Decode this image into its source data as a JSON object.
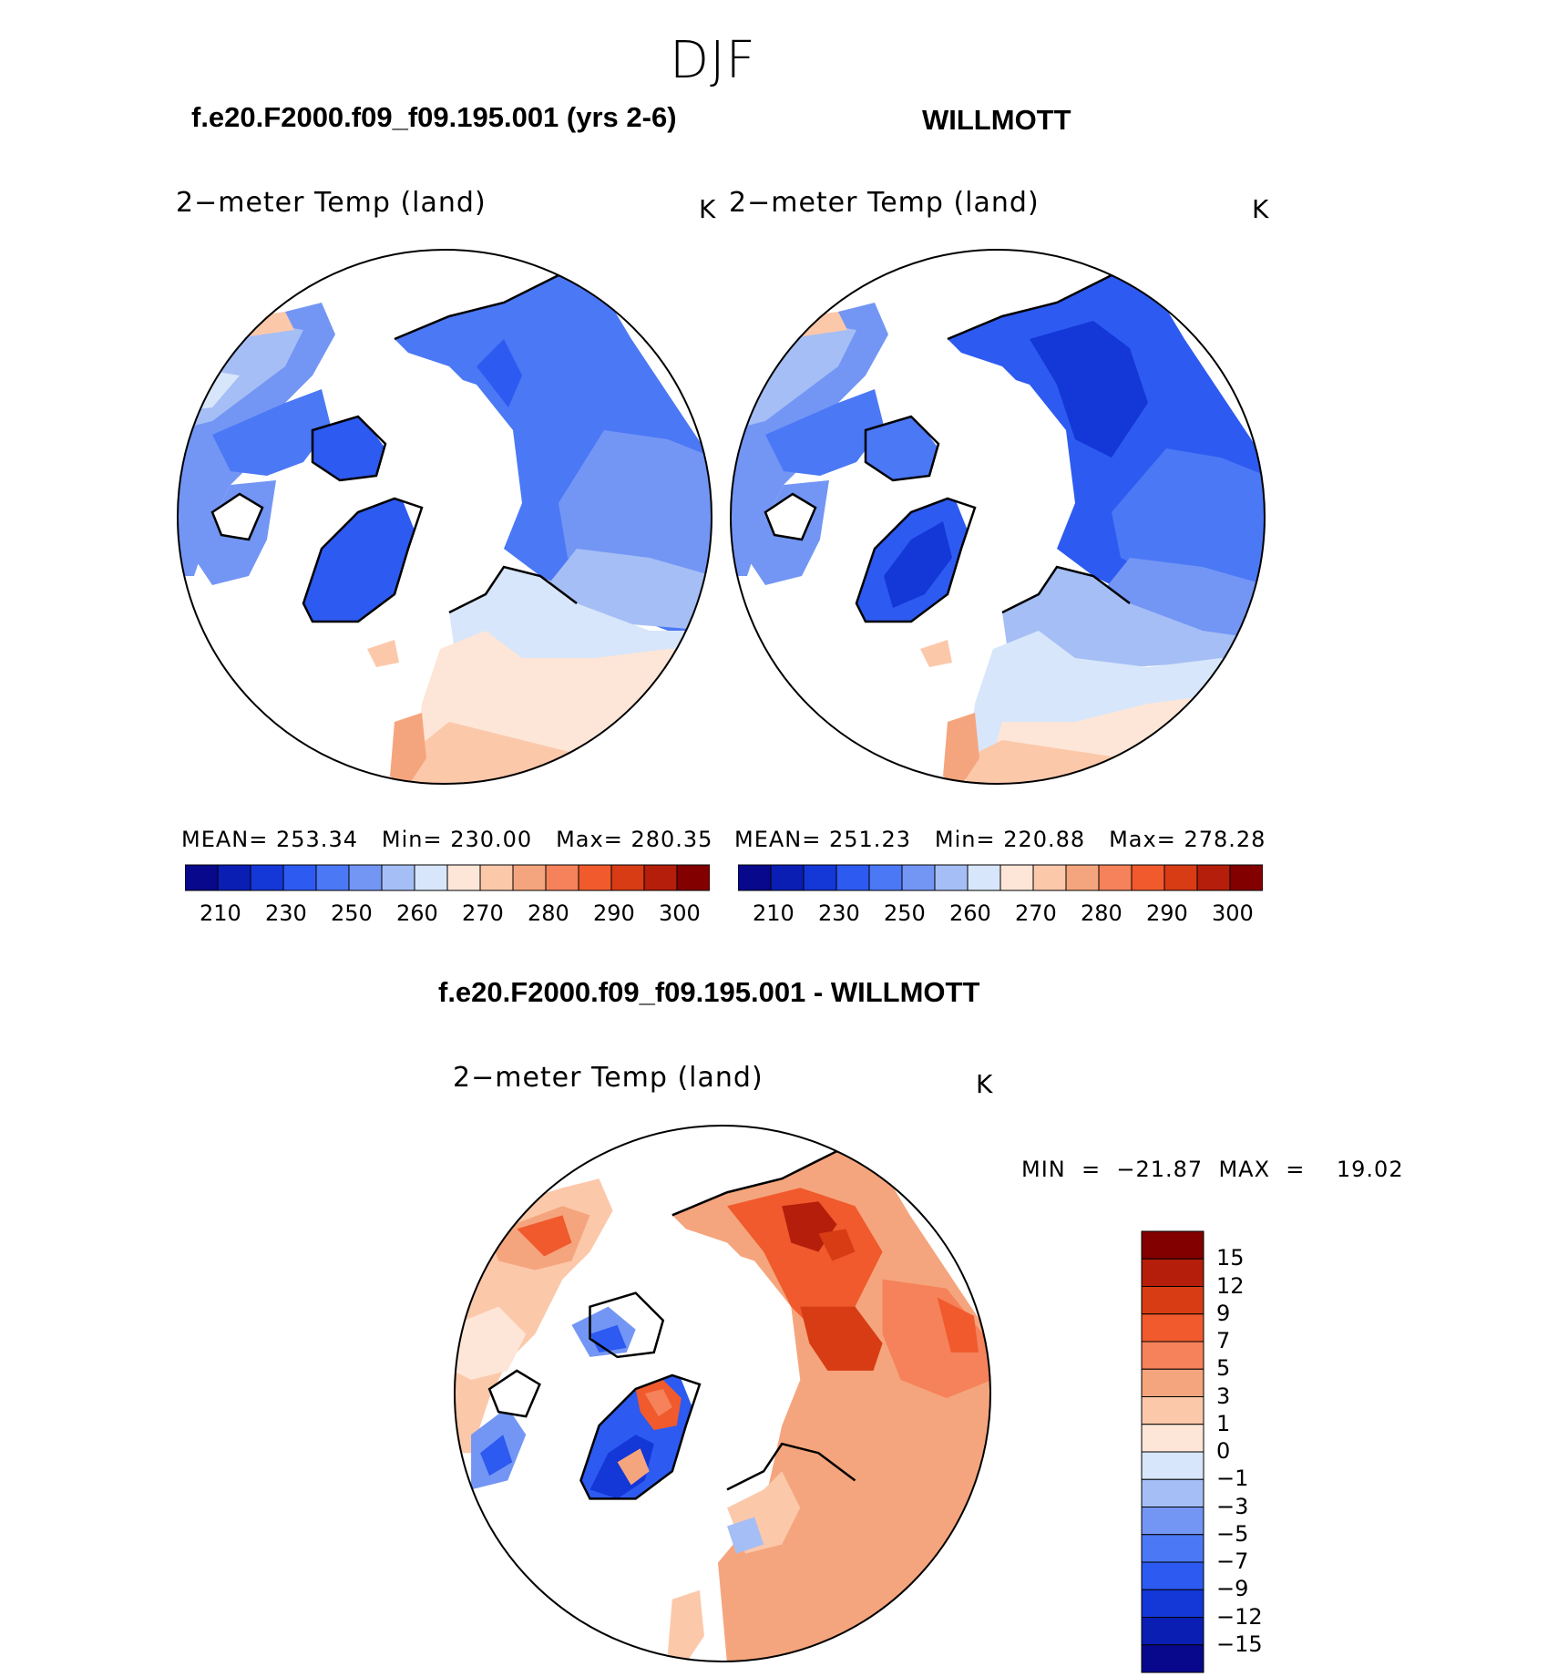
{
  "figure_title": "DJF",
  "panels": [
    {
      "case_title": "f.e20.F2000.f09_f09.195.001 (yrs 2-6)",
      "variable": "2−meter Temp (land)",
      "units": "K",
      "stats": {
        "mean_label": "MEAN=",
        "mean": "253.34",
        "min_label": "Min=",
        "min": "230.00",
        "max_label": "Max=",
        "max": "280.35"
      }
    },
    {
      "case_title": "WILLMOTT",
      "variable": "2−meter Temp (land)",
      "units": "K",
      "stats": {
        "mean_label": "MEAN=",
        "mean": "251.23",
        "min_label": "Min=",
        "min": "220.88",
        "max_label": "Max=",
        "max": "278.28"
      }
    }
  ],
  "abs_colorbar": {
    "ticks": [
      "210",
      "230",
      "250",
      "260",
      "270",
      "280",
      "290",
      "300"
    ],
    "colors": [
      "#08088c",
      "#0a1eb4",
      "#1437d7",
      "#2d5af0",
      "#4b78f5",
      "#7396f5",
      "#a5bef5",
      "#d7e6fa",
      "#fde6d7",
      "#fcc8aa",
      "#f5a57d",
      "#f5825a",
      "#f05a2d",
      "#d73c14",
      "#b41e0a",
      "#820000"
    ]
  },
  "diff_panel": {
    "title": "f.e20.F2000.f09_f09.195.001 - WILLMOTT",
    "variable": "2−meter Temp (land)",
    "units": "K",
    "minmax_text": "MIN  =  −21.87  MAX  =    19.02",
    "colorbar_ticks": [
      "15",
      "12",
      "9",
      "7",
      "5",
      "3",
      "1",
      "0",
      "−1",
      "−3",
      "−5",
      "−7",
      "−9",
      "−12",
      "−15"
    ],
    "colorbar_colors": [
      "#820000",
      "#b41e0a",
      "#d73c14",
      "#f05a2d",
      "#f5825a",
      "#f5a57d",
      "#fcc8aa",
      "#fde6d7",
      "#d7e6fa",
      "#a5bef5",
      "#7396f5",
      "#4b78f5",
      "#2d5af0",
      "#1437d7",
      "#0a1eb4",
      "#08088c"
    ]
  }
}
